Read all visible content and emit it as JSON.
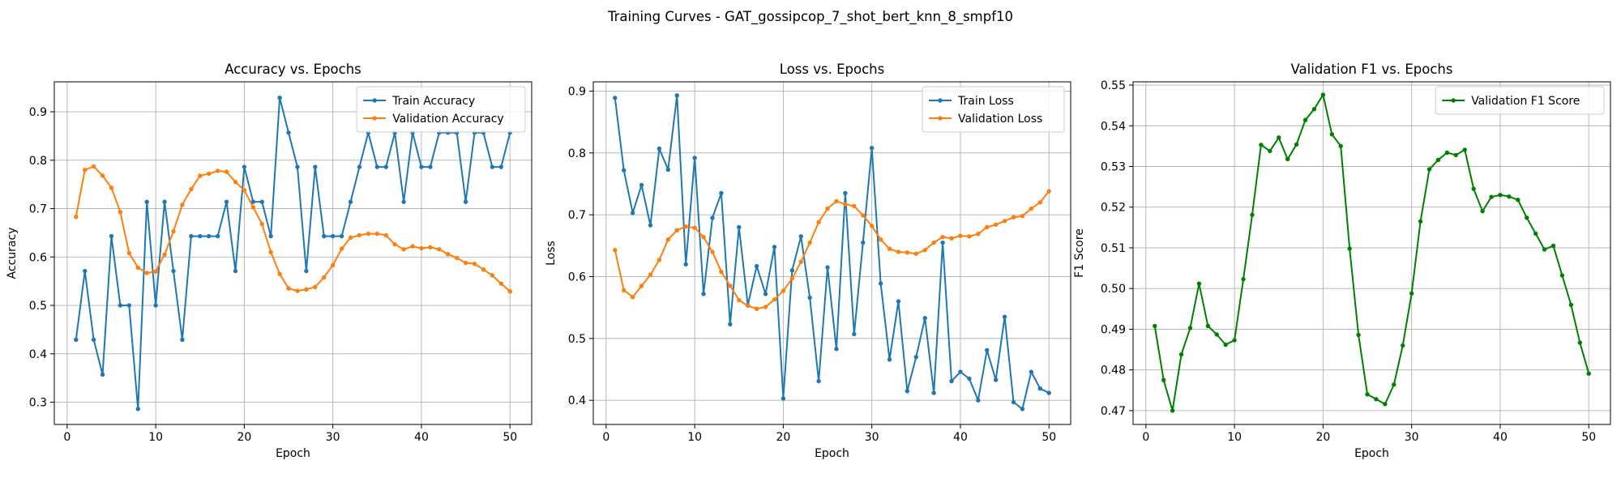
{
  "figure": {
    "title": "Training Curves - GAT_gossipcop_7_shot_bert_knn_8_smpf10"
  },
  "colors": {
    "blue": "#1f77b4",
    "orange": "#ff7f0e",
    "green": "#008000",
    "grid": "#b0b0b0"
  },
  "chart_data": [
    {
      "type": "line",
      "title": "Accuracy vs. Epochs",
      "xlabel": "Epoch",
      "ylabel": "Accuracy",
      "xlim": [
        -1.45,
        52.45
      ],
      "ylim": [
        0.254,
        0.962
      ],
      "xticks": [
        0,
        10,
        20,
        30,
        40,
        50
      ],
      "yticks": [
        0.3,
        0.4,
        0.5,
        0.6,
        0.7,
        0.8,
        0.9
      ],
      "ytick_decimals": 1,
      "grid": true,
      "legend_position": "upper right",
      "x": [
        1,
        2,
        3,
        4,
        5,
        6,
        7,
        8,
        9,
        10,
        11,
        12,
        13,
        14,
        15,
        16,
        17,
        18,
        19,
        20,
        21,
        22,
        23,
        24,
        25,
        26,
        27,
        28,
        29,
        30,
        31,
        32,
        33,
        34,
        35,
        36,
        37,
        38,
        39,
        40,
        41,
        42,
        43,
        44,
        45,
        46,
        47,
        48,
        49,
        50
      ],
      "series": [
        {
          "name": "Train Accuracy",
          "color": "#1f77b4",
          "values": [
            0.429,
            0.571,
            0.429,
            0.357,
            0.643,
            0.5,
            0.5,
            0.286,
            0.714,
            0.5,
            0.714,
            0.571,
            0.429,
            0.643,
            0.643,
            0.643,
            0.643,
            0.714,
            0.571,
            0.786,
            0.714,
            0.714,
            0.643,
            0.929,
            0.857,
            0.786,
            0.571,
            0.786,
            0.643,
            0.643,
            0.643,
            0.714,
            0.786,
            0.857,
            0.786,
            0.786,
            0.857,
            0.714,
            0.857,
            0.786,
            0.786,
            0.857,
            0.857,
            0.857,
            0.714,
            0.857,
            0.857,
            0.786,
            0.786,
            0.857
          ]
        },
        {
          "name": "Validation Accuracy",
          "color": "#ff7f0e",
          "values": [
            0.683,
            0.78,
            0.787,
            0.768,
            0.743,
            0.693,
            0.608,
            0.578,
            0.567,
            0.57,
            0.605,
            0.653,
            0.708,
            0.74,
            0.768,
            0.772,
            0.778,
            0.776,
            0.755,
            0.738,
            0.703,
            0.668,
            0.61,
            0.565,
            0.535,
            0.53,
            0.533,
            0.538,
            0.558,
            0.583,
            0.617,
            0.64,
            0.645,
            0.648,
            0.648,
            0.645,
            0.626,
            0.616,
            0.622,
            0.618,
            0.62,
            0.616,
            0.606,
            0.598,
            0.588,
            0.586,
            0.574,
            0.562,
            0.545,
            0.529
          ]
        }
      ]
    },
    {
      "type": "line",
      "title": "Loss vs. Epochs",
      "xlabel": "Epoch",
      "ylabel": "Loss",
      "xlim": [
        -1.45,
        52.45
      ],
      "ylim": [
        0.361,
        0.915
      ],
      "xticks": [
        0,
        10,
        20,
        30,
        40,
        50
      ],
      "yticks": [
        0.4,
        0.5,
        0.6,
        0.7,
        0.8,
        0.9
      ],
      "ytick_decimals": 1,
      "grid": true,
      "legend_position": "upper right",
      "x": [
        1,
        2,
        3,
        4,
        5,
        6,
        7,
        8,
        9,
        10,
        11,
        12,
        13,
        14,
        15,
        16,
        17,
        18,
        19,
        20,
        21,
        22,
        23,
        24,
        25,
        26,
        27,
        28,
        29,
        30,
        31,
        32,
        33,
        34,
        35,
        36,
        37,
        38,
        39,
        40,
        41,
        42,
        43,
        44,
        45,
        46,
        47,
        48,
        49,
        50
      ],
      "series": [
        {
          "name": "Train Loss",
          "color": "#1f77b4",
          "values": [
            0.889,
            0.772,
            0.703,
            0.748,
            0.683,
            0.807,
            0.773,
            0.893,
            0.62,
            0.792,
            0.572,
            0.695,
            0.735,
            0.523,
            0.68,
            0.554,
            0.617,
            0.572,
            0.648,
            0.403,
            0.61,
            0.665,
            0.566,
            0.431,
            0.615,
            0.483,
            0.735,
            0.507,
            0.655,
            0.808,
            0.589,
            0.466,
            0.56,
            0.415,
            0.47,
            0.533,
            0.412,
            0.655,
            0.431,
            0.446,
            0.435,
            0.4,
            0.481,
            0.433,
            0.535,
            0.397,
            0.386,
            0.446,
            0.419,
            0.412
          ]
        },
        {
          "name": "Validation Loss",
          "color": "#ff7f0e",
          "values": [
            0.643,
            0.578,
            0.567,
            0.585,
            0.603,
            0.627,
            0.66,
            0.675,
            0.681,
            0.679,
            0.664,
            0.64,
            0.608,
            0.585,
            0.562,
            0.553,
            0.548,
            0.551,
            0.563,
            0.577,
            0.597,
            0.624,
            0.655,
            0.688,
            0.71,
            0.722,
            0.717,
            0.714,
            0.699,
            0.682,
            0.66,
            0.645,
            0.64,
            0.639,
            0.637,
            0.643,
            0.655,
            0.664,
            0.662,
            0.666,
            0.665,
            0.669,
            0.68,
            0.684,
            0.69,
            0.696,
            0.698,
            0.71,
            0.72,
            0.738
          ]
        }
      ]
    },
    {
      "type": "line",
      "title": "Validation F1 vs. Epochs",
      "xlabel": "Epoch",
      "ylabel": "F1 Score",
      "xlim": [
        -1.45,
        52.45
      ],
      "ylim": [
        0.4666,
        0.5508
      ],
      "xticks": [
        0,
        10,
        20,
        30,
        40,
        50
      ],
      "yticks": [
        0.47,
        0.48,
        0.49,
        0.5,
        0.51,
        0.52,
        0.53,
        0.54,
        0.55
      ],
      "ytick_decimals": 2,
      "grid": true,
      "legend_position": "upper right",
      "x": [
        1,
        2,
        3,
        4,
        5,
        6,
        7,
        8,
        9,
        10,
        11,
        12,
        13,
        14,
        15,
        16,
        17,
        18,
        19,
        20,
        21,
        22,
        23,
        24,
        25,
        26,
        27,
        28,
        29,
        30,
        31,
        32,
        33,
        34,
        35,
        36,
        37,
        38,
        39,
        40,
        41,
        42,
        43,
        44,
        45,
        46,
        47,
        48,
        49,
        50
      ],
      "series": [
        {
          "name": "Validation F1 Score",
          "color": "#008000",
          "values": [
            0.4908,
            0.4775,
            0.47,
            0.4838,
            0.4903,
            0.5012,
            0.4908,
            0.4887,
            0.4862,
            0.4873,
            0.5023,
            0.5181,
            0.5353,
            0.5338,
            0.5371,
            0.5318,
            0.5354,
            0.5414,
            0.5441,
            0.5476,
            0.5379,
            0.535,
            0.5098,
            0.4886,
            0.474,
            0.4728,
            0.4716,
            0.4764,
            0.486,
            0.4988,
            0.5165,
            0.5293,
            0.5316,
            0.5334,
            0.5328,
            0.5341,
            0.5245,
            0.519,
            0.5225,
            0.523,
            0.5226,
            0.5218,
            0.5174,
            0.5135,
            0.5096,
            0.5105,
            0.5032,
            0.496,
            0.4867,
            0.4791
          ]
        }
      ]
    }
  ]
}
